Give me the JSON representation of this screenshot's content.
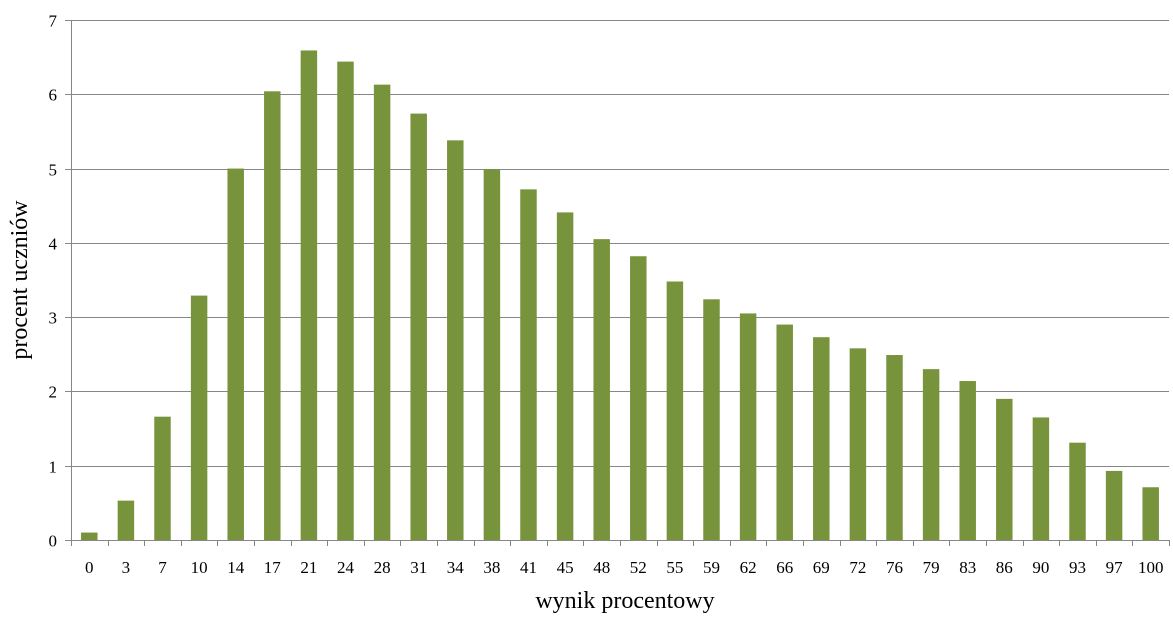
{
  "chart_data": {
    "type": "bar",
    "categories": [
      "0",
      "3",
      "7",
      "10",
      "14",
      "17",
      "21",
      "24",
      "28",
      "31",
      "34",
      "38",
      "41",
      "45",
      "48",
      "52",
      "55",
      "59",
      "62",
      "66",
      "69",
      "72",
      "76",
      "79",
      "83",
      "86",
      "90",
      "93",
      "97",
      "100"
    ],
    "values": [
      0.1,
      0.53,
      1.66,
      3.29,
      5.0,
      6.04,
      6.59,
      6.44,
      6.13,
      5.74,
      5.38,
      4.99,
      4.72,
      4.41,
      4.05,
      3.82,
      3.48,
      3.24,
      3.05,
      2.9,
      2.73,
      2.58,
      2.49,
      2.3,
      2.14,
      1.9,
      1.65,
      1.31,
      0.93,
      0.71
    ],
    "xlabel": "wynik procentowy",
    "ylabel": "procent uczniów",
    "ylim": [
      0,
      7
    ],
    "yticks": [
      "0",
      "1",
      "2",
      "3",
      "4",
      "5",
      "6",
      "7"
    ],
    "grid": true,
    "bar_color": "#77933c",
    "grid_color": "#868686",
    "axis_color": "#868686"
  }
}
